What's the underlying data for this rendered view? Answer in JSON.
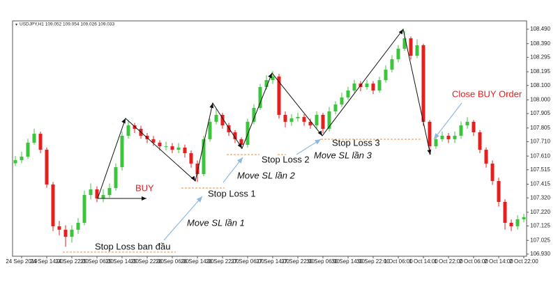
{
  "chart_data": {
    "type": "candlestick",
    "header": "USDJPY,H1 109.052 109.054 109.026 109.033",
    "up_color": "#3cc43c",
    "down_color": "#e51e1e",
    "ylim": [
      106.915,
      108.548
    ],
    "yticks": [
      {
        "value": 108.49,
        "label": "108.490"
      },
      {
        "value": 108.39,
        "label": "108.390"
      },
      {
        "value": 108.295,
        "label": "108.295"
      },
      {
        "value": 108.195,
        "label": "108.195"
      },
      {
        "value": 108.1,
        "label": "108.100"
      },
      {
        "value": 108.0,
        "label": "108.000"
      },
      {
        "value": 107.905,
        "label": "107.905"
      },
      {
        "value": 107.805,
        "label": "107.805"
      },
      {
        "value": 107.71,
        "label": "107.710"
      },
      {
        "value": 107.61,
        "label": "107.610"
      },
      {
        "value": 107.515,
        "label": "107.515"
      },
      {
        "value": 107.415,
        "label": "107.415"
      },
      {
        "value": 107.32,
        "label": "107.320"
      },
      {
        "value": 107.22,
        "label": "107.220"
      },
      {
        "value": 107.125,
        "label": "107.125"
      },
      {
        "value": 107.025,
        "label": "107.025"
      },
      {
        "value": 106.93,
        "label": "106.930"
      }
    ],
    "xticks": [
      {
        "value": 1,
        "label": "24 Sep 2019"
      },
      {
        "value": 5,
        "label": "24 Sep 14:00"
      },
      {
        "value": 9,
        "label": "24 Sep 22:00"
      },
      {
        "value": 13,
        "label": "25 Sep 06:00"
      },
      {
        "value": 17,
        "label": "25 Sep 14:00"
      },
      {
        "value": 21,
        "label": "25 Sep 22:00"
      },
      {
        "value": 25,
        "label": "26 Sep 06:00"
      },
      {
        "value": 29,
        "label": "26 Sep 14:00"
      },
      {
        "value": 33,
        "label": "26 Sep 22:00"
      },
      {
        "value": 37,
        "label": "27 Sep 06:00"
      },
      {
        "value": 41,
        "label": "27 Sep 14:00"
      },
      {
        "value": 45,
        "label": "27 Sep 22:00"
      },
      {
        "value": 49,
        "label": "30 Sep 06:00"
      },
      {
        "value": 53,
        "label": "30 Sep 14:00"
      },
      {
        "value": 57,
        "label": "30 Sep 22:00"
      },
      {
        "value": 61,
        "label": "1 Oct 06:00"
      },
      {
        "value": 65,
        "label": "1 Oct 14:00"
      },
      {
        "value": 69,
        "label": "1 Oct 22:00"
      },
      {
        "value": 73,
        "label": "2 Oct 06:00"
      },
      {
        "value": 77,
        "label": "2 Oct 14:00"
      },
      {
        "value": 81,
        "label": "2 Oct 22:00"
      }
    ],
    "open": [
      107.56,
      107.582,
      107.606,
      107.703,
      107.765,
      107.654,
      107.413,
      107.123,
      107.099,
      107.05,
      107.099,
      107.147,
      107.34,
      107.379,
      107.316,
      107.34,
      107.388,
      107.533,
      107.751,
      107.823,
      107.799,
      107.751,
      107.727,
      107.703,
      107.678,
      107.678,
      107.654,
      107.669,
      107.63,
      107.558,
      107.485,
      107.727,
      107.848,
      107.896,
      107.823,
      107.775,
      107.727,
      107.688,
      107.848,
      107.944,
      108.089,
      108.137,
      108.162,
      107.896,
      107.848,
      107.872,
      107.881,
      107.848,
      107.823,
      107.896,
      107.799,
      107.92,
      107.968,
      108.017,
      108.065,
      108.113,
      108.089,
      108.113,
      108.065,
      108.137,
      108.21,
      108.282,
      108.355,
      108.427,
      108.306,
      108.379,
      107.848,
      107.678,
      107.727,
      107.751,
      107.727,
      107.751,
      107.823,
      107.848,
      107.775,
      107.654,
      107.558,
      107.437,
      107.292,
      107.147,
      107.123,
      107.171
    ],
    "high": [
      107.61,
      107.64,
      107.73,
      107.8,
      107.78,
      107.67,
      107.43,
      107.16,
      107.13,
      107.13,
      107.18,
      107.37,
      107.42,
      107.4,
      107.38,
      107.42,
      107.56,
      107.78,
      107.86,
      107.84,
      107.82,
      107.77,
      107.75,
      107.72,
      107.71,
      107.7,
      107.7,
      107.69,
      107.65,
      107.58,
      107.75,
      107.87,
      107.94,
      107.91,
      107.84,
      107.79,
      107.74,
      107.87,
      107.97,
      108.11,
      108.17,
      108.2,
      108.18,
      107.92,
      107.9,
      107.91,
      107.9,
      107.87,
      107.92,
      107.91,
      107.95,
      107.99,
      108.05,
      108.09,
      108.14,
      108.13,
      108.14,
      108.13,
      108.16,
      108.24,
      108.31,
      108.38,
      108.48,
      108.44,
      108.42,
      108.39,
      107.86,
      107.75,
      107.78,
      107.77,
      107.78,
      107.85,
      107.88,
      107.86,
      107.79,
      107.67,
      107.58,
      107.46,
      107.31,
      107.17,
      107.2,
      107.21
    ],
    "low": [
      107.54,
      107.56,
      107.59,
      107.69,
      107.63,
      107.39,
      107.09,
      107.06,
      106.98,
      107.01,
      107.07,
      107.13,
      107.31,
      107.29,
      107.29,
      107.32,
      107.37,
      107.51,
      107.73,
      107.77,
      107.73,
      107.7,
      107.68,
      107.65,
      107.65,
      107.63,
      107.63,
      107.6,
      107.53,
      107.43,
      107.47,
      107.71,
      107.83,
      107.8,
      107.75,
      107.7,
      107.66,
      107.67,
      107.83,
      107.93,
      108.07,
      108.11,
      107.87,
      107.81,
      107.82,
      107.85,
      107.82,
      107.8,
      107.8,
      107.77,
      107.78,
      107.9,
      107.95,
      108.0,
      108.05,
      108.06,
      108.07,
      108.04,
      108.05,
      108.12,
      108.19,
      108.26,
      108.34,
      108.28,
      108.29,
      107.82,
      107.62,
      107.66,
      107.71,
      107.7,
      107.7,
      107.73,
      107.8,
      107.75,
      107.63,
      107.53,
      107.41,
      107.26,
      107.1,
      107.09,
      107.1,
      107.15
    ],
    "close": [
      107.582,
      107.606,
      107.703,
      107.765,
      107.654,
      107.413,
      107.123,
      107.099,
      107.05,
      107.099,
      107.147,
      107.34,
      107.379,
      107.316,
      107.34,
      107.388,
      107.533,
      107.751,
      107.823,
      107.799,
      107.751,
      107.727,
      107.703,
      107.678,
      107.678,
      107.654,
      107.669,
      107.63,
      107.558,
      107.485,
      107.727,
      107.848,
      107.896,
      107.823,
      107.775,
      107.727,
      107.688,
      107.848,
      107.944,
      108.089,
      108.137,
      108.162,
      107.896,
      107.848,
      107.872,
      107.881,
      107.848,
      107.823,
      107.896,
      107.799,
      107.92,
      107.968,
      108.017,
      108.065,
      108.113,
      108.089,
      108.113,
      108.065,
      108.137,
      108.21,
      108.282,
      108.355,
      108.427,
      108.306,
      108.379,
      107.848,
      107.678,
      107.727,
      107.751,
      107.727,
      107.751,
      107.823,
      107.848,
      107.775,
      107.654,
      107.558,
      107.437,
      107.292,
      107.147,
      107.123,
      107.171,
      107.186
    ],
    "annotations": [
      "BUY",
      "Close BUY Order",
      "Stop Loss ban đầu",
      "Move SL lần 1",
      "Stop Loss 1",
      "Move SL lần 2",
      "Stop Loss 2",
      "Move SL lần 3",
      "Stop Loss 3"
    ]
  }
}
